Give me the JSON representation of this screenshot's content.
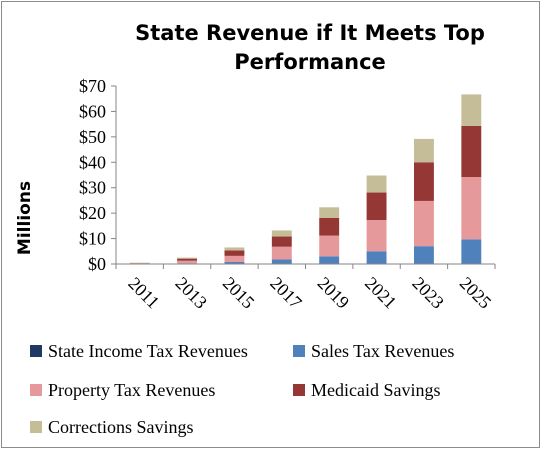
{
  "chart_data": {
    "type": "bar",
    "stacked": true,
    "title": "State Revenue if It Meets Top Performance",
    "title_lines": [
      "State Revenue if It Meets Top",
      "Performance"
    ],
    "ylabel": "Millions",
    "xlabel": "",
    "ylim": [
      0,
      70
    ],
    "yticks": [
      0,
      10,
      20,
      30,
      40,
      50,
      60,
      70
    ],
    "ytick_labels": [
      "$0",
      "$10",
      "$20",
      "$30",
      "$40",
      "$50",
      "$60",
      "$70"
    ],
    "grid": false,
    "legend_position": "bottom",
    "categories": [
      "2011",
      "2013",
      "2015",
      "2017",
      "2019",
      "2021",
      "2023",
      "2025"
    ],
    "series": [
      {
        "name": "State Income Tax Revenues",
        "color": "#1f3864",
        "values": [
          0,
          0,
          0,
          0,
          0,
          0,
          0,
          0
        ]
      },
      {
        "name": "Sales Tax Revenues",
        "color": "#4f81bd",
        "values": [
          0,
          0.3,
          0.8,
          1.8,
          3.0,
          5.0,
          7.0,
          9.7
        ]
      },
      {
        "name": "Property Tax Revenues",
        "color": "#e6999a",
        "values": [
          0.2,
          1.0,
          2.4,
          5.0,
          8.2,
          12.3,
          17.8,
          24.5
        ]
      },
      {
        "name": "Medicaid Savings",
        "color": "#953735",
        "values": [
          0.1,
          0.8,
          2.1,
          4.0,
          6.9,
          10.8,
          15.2,
          20.1
        ]
      },
      {
        "name": "Corrections Savings",
        "color": "#c4bd97",
        "values": [
          0.2,
          0.4,
          1.2,
          2.4,
          4.2,
          6.7,
          9.2,
          12.4
        ]
      }
    ]
  }
}
